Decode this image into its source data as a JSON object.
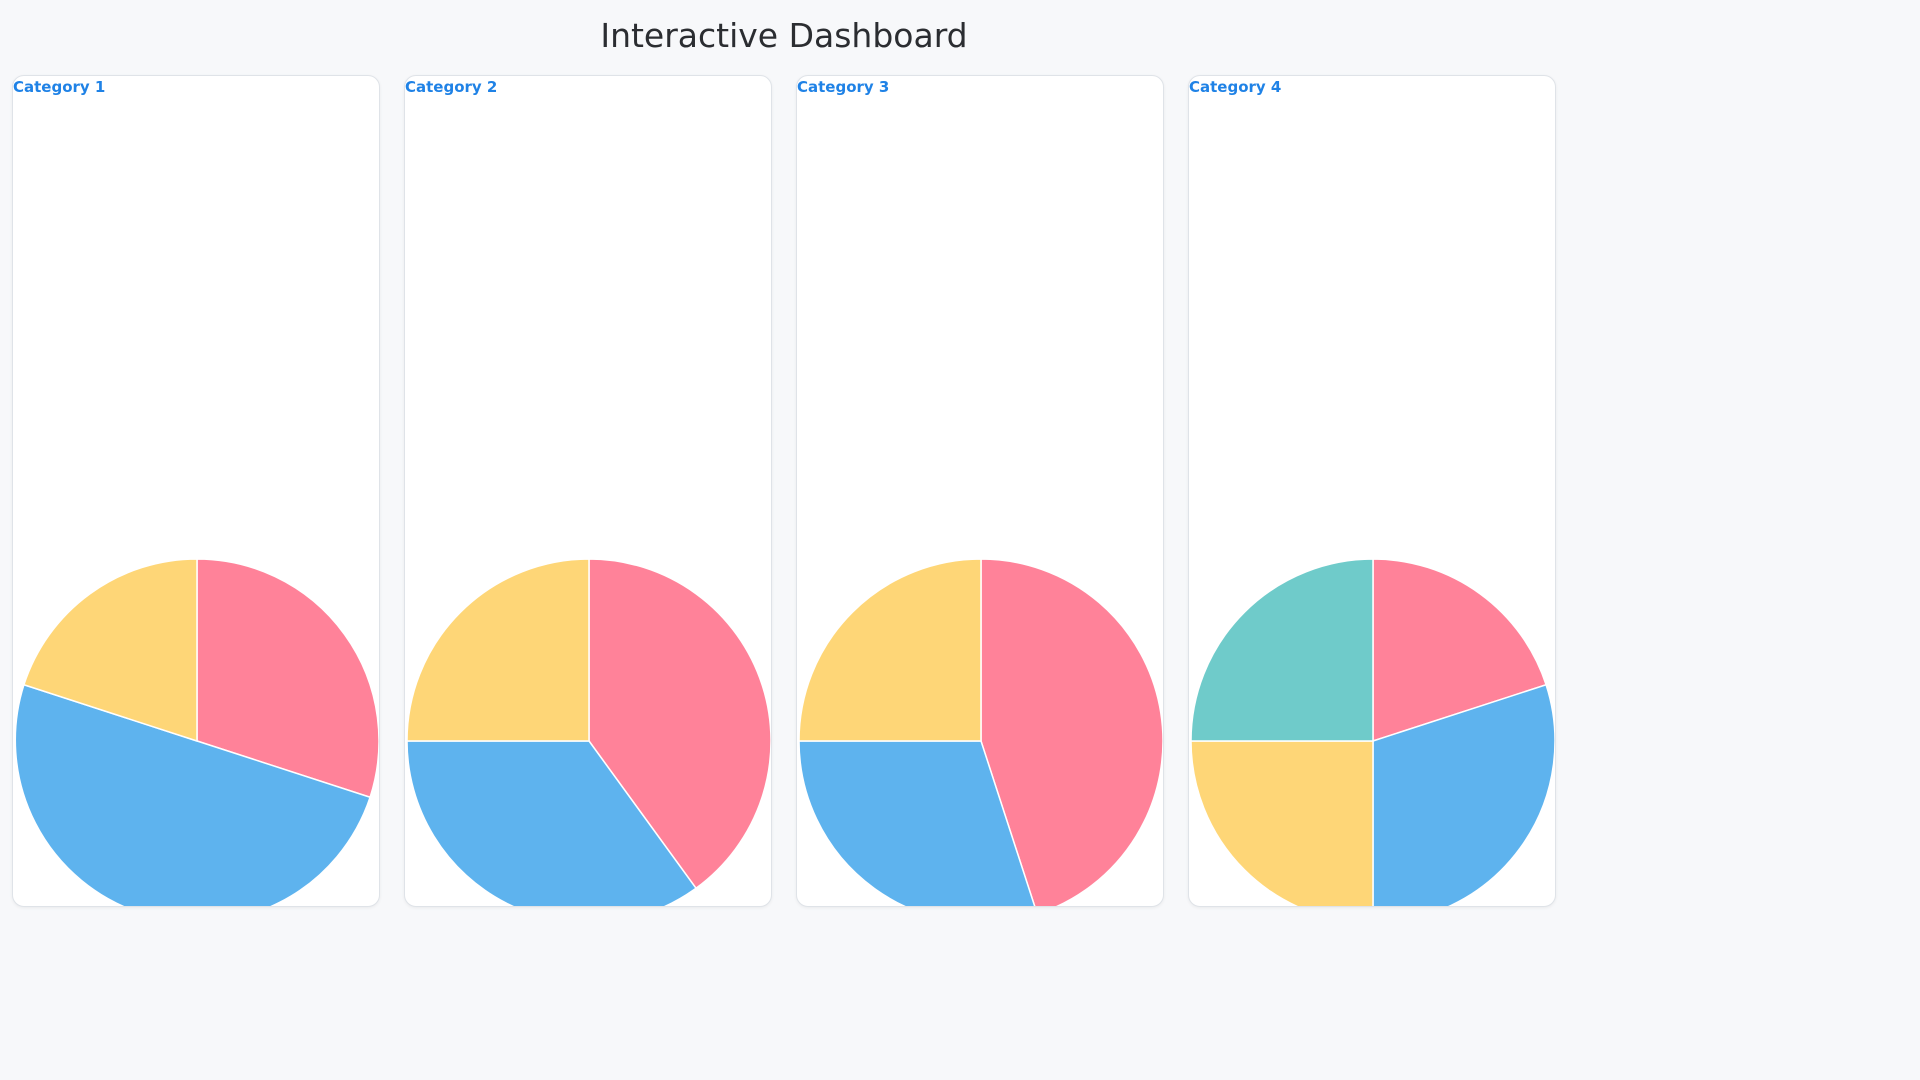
{
  "header": {
    "title": "Interactive Dashboard"
  },
  "colors": {
    "pink": "#ff8299",
    "blue": "#5eb3ee",
    "yellow": "#fed677",
    "teal": "#6fcbca",
    "title_accent": "#1f82e6"
  },
  "chart_data": [
    {
      "type": "pie",
      "title": "Category 1",
      "values": [
        30,
        50,
        20
      ],
      "colors": [
        "#ff8299",
        "#5eb3ee",
        "#fed677"
      ]
    },
    {
      "type": "pie",
      "title": "Category 2",
      "values": [
        40,
        35,
        25
      ],
      "colors": [
        "#ff8299",
        "#5eb3ee",
        "#fed677"
      ]
    },
    {
      "type": "pie",
      "title": "Category 3",
      "values": [
        45,
        30,
        25
      ],
      "colors": [
        "#ff8299",
        "#5eb3ee",
        "#fed677"
      ]
    },
    {
      "type": "pie",
      "title": "Category 4",
      "values": [
        20,
        30,
        25,
        25
      ],
      "colors": [
        "#ff8299",
        "#5eb3ee",
        "#fed677",
        "#6fcbca"
      ]
    }
  ]
}
